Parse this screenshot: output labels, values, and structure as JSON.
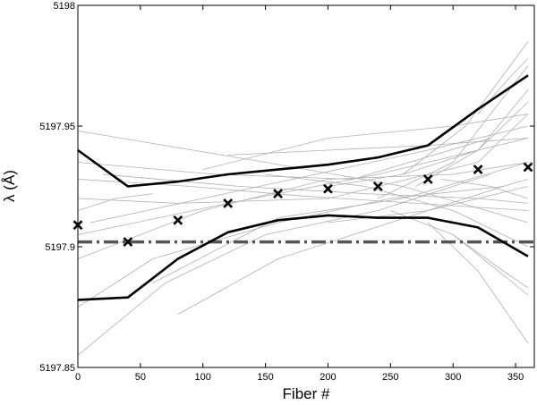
{
  "chart_data": {
    "type": "line",
    "xlabel": "Fiber #",
    "ylabel": "λ (Å)",
    "xlim": [
      0,
      365
    ],
    "ylim": [
      5197.85,
      5198
    ],
    "xticks": [
      0,
      50,
      100,
      150,
      200,
      250,
      300,
      350
    ],
    "yticks": [
      5197.85,
      5197.9,
      5197.95,
      5198
    ],
    "ytick_labels": [
      "5197.85",
      "5197.9",
      "5197.95",
      "5198"
    ],
    "grid": false,
    "legend": "none",
    "series": [
      {
        "role": "upper-envelope",
        "x": [
          0,
          40,
          80,
          120,
          160,
          200,
          240,
          280,
          320,
          360
        ],
        "y": [
          5197.94,
          5197.925,
          5197.927,
          5197.93,
          5197.932,
          5197.934,
          5197.937,
          5197.942,
          5197.957,
          5197.971
        ],
        "color": "#000000"
      },
      {
        "role": "lower-envelope",
        "x": [
          0,
          40,
          80,
          120,
          160,
          200,
          240,
          280,
          320,
          360
        ],
        "y": [
          5197.878,
          5197.879,
          5197.895,
          5197.906,
          5197.911,
          5197.913,
          5197.912,
          5197.912,
          5197.908,
          5197.896
        ],
        "color": "#000000"
      },
      {
        "role": "markers",
        "marker": "x",
        "x": [
          0,
          40,
          80,
          120,
          160,
          200,
          240,
          280,
          320,
          360
        ],
        "y": [
          5197.909,
          5197.902,
          5197.911,
          5197.918,
          5197.922,
          5197.924,
          5197.925,
          5197.928,
          5197.932,
          5197.933
        ],
        "color": "#000000"
      },
      {
        "role": "reference-line",
        "style": "dash-dot",
        "x": [
          0,
          365
        ],
        "y": [
          5197.902,
          5197.902
        ],
        "color": "#555555"
      }
    ],
    "background_lines": {
      "color": "#b0b0b0",
      "lines": [
        {
          "x": [
            0,
            120,
            240,
            360
          ],
          "y": [
            5197.905,
            5197.918,
            5197.93,
            5197.945
          ]
        },
        {
          "x": [
            0,
            100,
            200,
            300,
            360
          ],
          "y": [
            5197.895,
            5197.915,
            5197.928,
            5197.93,
            5197.935
          ]
        },
        {
          "x": [
            0,
            90,
            180,
            270,
            360
          ],
          "y": [
            5197.928,
            5197.925,
            5197.921,
            5197.918,
            5197.915
          ]
        },
        {
          "x": [
            0,
            150,
            260,
            360
          ],
          "y": [
            5197.948,
            5197.935,
            5197.925,
            5197.91
          ]
        },
        {
          "x": [
            0,
            60,
            160,
            250,
            340
          ],
          "y": [
            5197.875,
            5197.895,
            5197.91,
            5197.92,
            5197.925
          ]
        },
        {
          "x": [
            0,
            80,
            200,
            320,
            360
          ],
          "y": [
            5197.92,
            5197.918,
            5197.92,
            5197.935,
            5197.955
          ]
        },
        {
          "x": [
            10,
            100,
            190,
            280,
            360
          ],
          "y": [
            5197.91,
            5197.92,
            5197.93,
            5197.94,
            5197.95
          ]
        },
        {
          "x": [
            0,
            70,
            150,
            240,
            330
          ],
          "y": [
            5197.855,
            5197.885,
            5197.905,
            5197.915,
            5197.93
          ]
        },
        {
          "x": [
            0,
            110,
            220,
            330
          ],
          "y": [
            5197.935,
            5197.93,
            5197.928,
            5197.945
          ]
        },
        {
          "x": [
            20,
            130,
            230,
            320,
            360
          ],
          "y": [
            5197.93,
            5197.925,
            5197.922,
            5197.92,
            5197.918
          ]
        },
        {
          "x": [
            60,
            160,
            260,
            360
          ],
          "y": [
            5197.885,
            5197.912,
            5197.92,
            5197.935
          ]
        },
        {
          "x": [
            80,
            160,
            250,
            340,
            360
          ],
          "y": [
            5197.872,
            5197.895,
            5197.91,
            5197.925,
            5197.928
          ]
        },
        {
          "x": [
            100,
            200,
            300,
            360
          ],
          "y": [
            5197.932,
            5197.945,
            5197.95,
            5197.955
          ]
        },
        {
          "x": [
            120,
            200,
            280,
            360
          ],
          "y": [
            5197.938,
            5197.94,
            5197.942,
            5197.945
          ]
        },
        {
          "x": [
            150,
            230,
            300,
            360
          ],
          "y": [
            5197.93,
            5197.925,
            5197.915,
            5197.9
          ]
        },
        {
          "x": [
            200,
            260,
            320,
            360
          ],
          "y": [
            5197.925,
            5197.93,
            5197.94,
            5197.96
          ]
        },
        {
          "x": [
            240,
            300,
            360
          ],
          "y": [
            5197.92,
            5197.935,
            5197.975
          ]
        },
        {
          "x": [
            260,
            310,
            360
          ],
          "y": [
            5197.93,
            5197.95,
            5197.985
          ]
        },
        {
          "x": [
            250,
            300,
            360
          ],
          "y": [
            5197.915,
            5197.905,
            5197.88
          ]
        },
        {
          "x": [
            280,
            320,
            360
          ],
          "y": [
            5197.91,
            5197.89,
            5197.86
          ]
        },
        {
          "x": [
            270,
            320,
            360
          ],
          "y": [
            5197.925,
            5197.94,
            5197.965
          ]
        },
        {
          "x": [
            290,
            330,
            360
          ],
          "y": [
            5197.928,
            5197.925,
            5197.92
          ]
        },
        {
          "x": [
            300,
            340,
            360
          ],
          "y": [
            5197.905,
            5197.89,
            5197.883
          ]
        },
        {
          "x": [
            320,
            345,
            360
          ],
          "y": [
            5197.955,
            5197.97,
            5197.978
          ]
        },
        {
          "x": [
            200,
            280,
            360
          ],
          "y": [
            5197.91,
            5197.915,
            5197.925
          ]
        },
        {
          "x": [
            0,
            30,
            60
          ],
          "y": [
            5197.915,
            5197.92,
            5197.922
          ]
        }
      ]
    }
  }
}
